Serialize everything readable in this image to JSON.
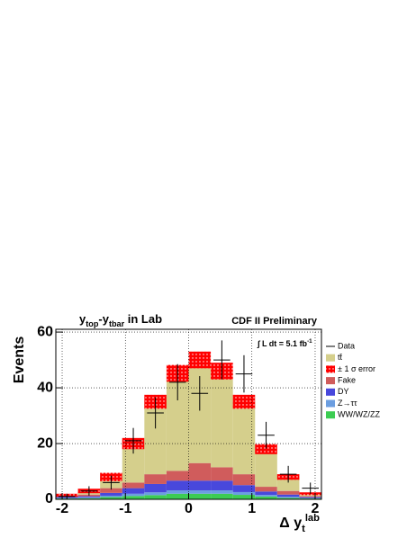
{
  "chart_data": {
    "type": "stacked_histogram",
    "title_parts": [
      {
        "text": "y"
      },
      {
        "text": "top",
        "sub": true
      },
      {
        "text": "-y"
      },
      {
        "text": "tbar",
        "sub": true
      },
      {
        "text": " in Lab"
      }
    ],
    "label": "CDF II Preliminary",
    "annotation": "∫ L dt = 5.1 fb",
    "annotation_sup": "-1",
    "y_label": "Events",
    "x_label_parts": [
      {
        "text": "Δ y"
      },
      {
        "text": "t",
        "sub": true
      },
      {
        "text": "lab",
        "sup": true
      }
    ],
    "bins": [
      -2.1,
      -1.75,
      -1.4,
      -1.05,
      -0.7,
      -0.35,
      0,
      0.35,
      0.7,
      1.05,
      1.4,
      1.75,
      2.1
    ],
    "series": [
      {
        "name": "tt̄",
        "color": "#d5cf8c",
        "values": [
          0.3,
          1.3,
          4,
          14,
          26,
          35,
          37,
          34.5,
          26,
          13.5,
          5,
          0.9
        ]
      },
      {
        "name": "Fake",
        "color": "#d05c5c",
        "values": [
          0.4,
          0.6,
          1.7,
          2,
          3.5,
          3.5,
          6.3,
          4.8,
          3.9,
          1.7,
          1.3,
          0.3
        ]
      },
      {
        "name": "DY",
        "color": "#4848dc",
        "values": [
          0.3,
          0.4,
          1,
          2,
          3,
          3.5,
          3.5,
          3.5,
          2.5,
          1.2,
          0.8,
          0.3
        ]
      },
      {
        "name": "Z→ττ",
        "color": "#6c9ee0",
        "values": [
          0.2,
          0.3,
          0.5,
          0.8,
          1,
          1.2,
          1.2,
          1.2,
          1,
          0.6,
          0.4,
          0.2
        ]
      },
      {
        "name": "WW/WZ/ZZ",
        "color": "#3ccc52",
        "values": [
          0.3,
          0.4,
          0.8,
          1.2,
          1.5,
          2,
          2,
          2,
          1.6,
          1,
          0.5,
          0.3
        ]
      }
    ],
    "error_band": {
      "name": "± 1 σ error",
      "color": "#ff0000",
      "values": [
        0.5,
        0.8,
        1.5,
        2,
        2.5,
        3,
        3,
        3,
        2.5,
        1.8,
        1,
        0.5
      ]
    },
    "data": {
      "name": "Data",
      "values": [
        1,
        3,
        6,
        21,
        31,
        42,
        38,
        50,
        45,
        23,
        9,
        4
      ],
      "errors": [
        1,
        1.7,
        2.5,
        4.6,
        5.6,
        6.5,
        6.2,
        7,
        6.7,
        4.8,
        3,
        2
      ]
    },
    "xlim": [
      -2.1,
      2.1
    ],
    "ylim": [
      0,
      61
    ],
    "xticks": [
      -2,
      -1,
      0,
      1,
      2
    ],
    "yticks": [
      0,
      20,
      40,
      60
    ],
    "grid": true,
    "legend": "right"
  }
}
